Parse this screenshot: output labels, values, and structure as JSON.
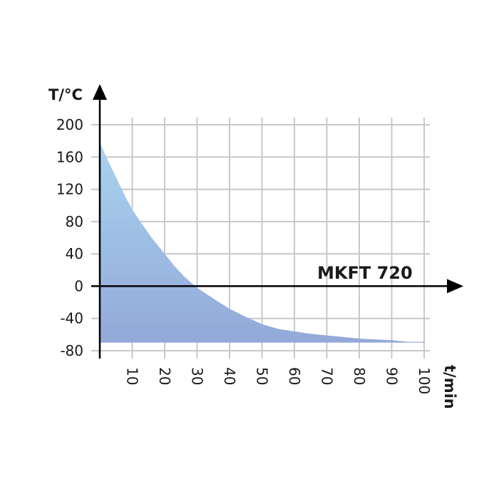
{
  "chart_data": {
    "type": "area",
    "y_axis_label": "T/°C",
    "x_axis_label": "t/min",
    "series_label": "MKFT 720",
    "x_ticks": [
      10,
      20,
      30,
      40,
      50,
      60,
      70,
      80,
      90,
      100
    ],
    "y_ticks": [
      200,
      160,
      120,
      80,
      40,
      0,
      -40,
      -80
    ],
    "xlim": [
      0,
      100
    ],
    "ylim": [
      -80,
      200
    ],
    "area_baseline": -70,
    "grid": true,
    "colors": {
      "fill_top": "#a9d3ef",
      "fill_bottom": "#93a9d9",
      "grid": "#c8c8c8",
      "axis": "#000000"
    },
    "series": [
      {
        "x": [
          0,
          2,
          5,
          8,
          10,
          13,
          16,
          20,
          23,
          26,
          28,
          30,
          33,
          36,
          40,
          45,
          50,
          55,
          60,
          65,
          70,
          75,
          80,
          85,
          90,
          95,
          100
        ],
        "y": [
          178,
          160,
          135,
          110,
          95,
          77,
          60,
          40,
          25,
          12,
          5,
          -2,
          -10,
          -18,
          -28,
          -38,
          -47,
          -53,
          -56,
          -59,
          -61,
          -63,
          -65,
          -66,
          -67,
          -69,
          -69
        ]
      }
    ]
  }
}
